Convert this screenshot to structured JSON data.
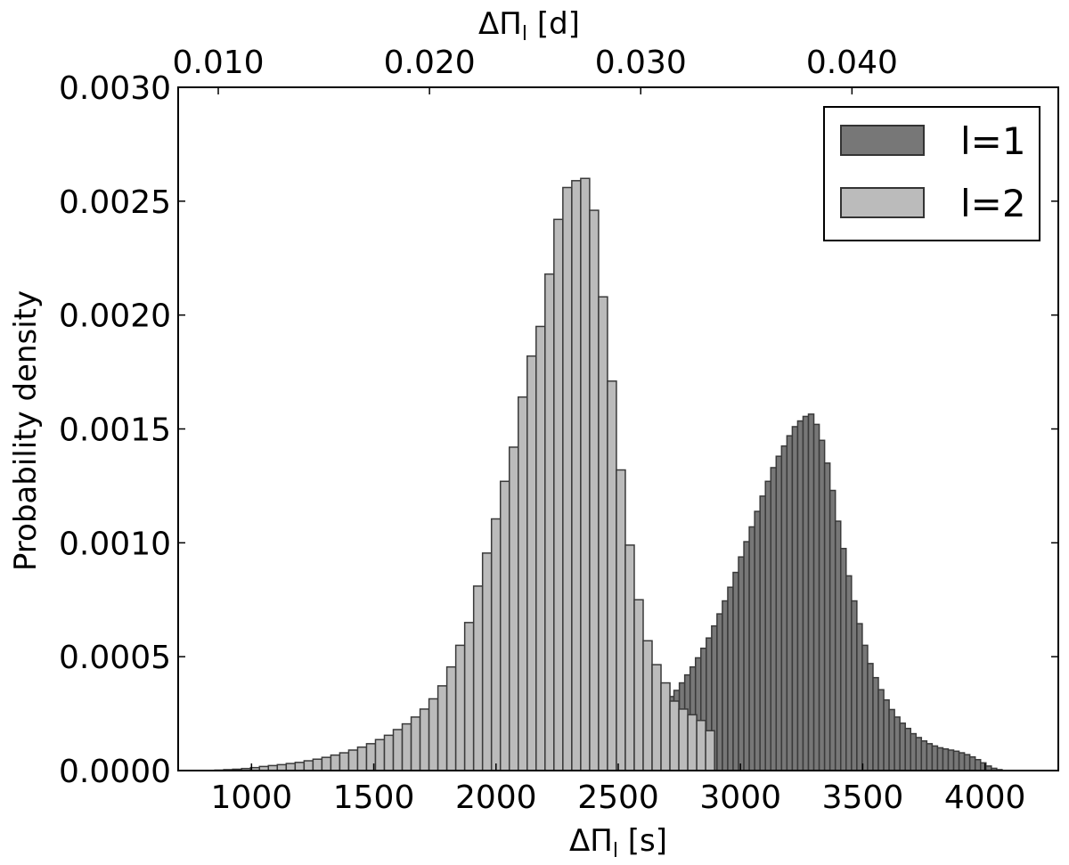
{
  "chart_data": {
    "type": "bar",
    "title": "",
    "xlabel": "ΔΠ",
    "xlabel_sub": "l",
    "xlabel_unit": "[s]",
    "ylabel": "Probability density",
    "top_xlabel": "ΔΠ",
    "top_xlabel_sub": "l",
    "top_xlabel_unit": "[d]",
    "xlim": [
      700,
      4300
    ],
    "ylim": [
      0,
      0.003
    ],
    "xticks": [
      1000,
      1500,
      2000,
      2500,
      3000,
      3500,
      4000
    ],
    "xtick_labels": [
      "1000",
      "1500",
      "2000",
      "2500",
      "3000",
      "3500",
      "4000"
    ],
    "yticks": [
      0,
      0.0005,
      0.001,
      0.0015,
      0.002,
      0.0025,
      0.003
    ],
    "ytick_labels": [
      "0.0000",
      "0.0005",
      "0.0010",
      "0.0015",
      "0.0020",
      "0.0025",
      "0.0030"
    ],
    "top_xticks_days": [
      0.01,
      0.02,
      0.03,
      0.04
    ],
    "top_xtick_labels": [
      "0.010",
      "0.020",
      "0.030",
      "0.040"
    ],
    "grid": false,
    "legend_position": "top-right",
    "series": [
      {
        "name": "l=1",
        "color": "#777777",
        "bin_start": 1870,
        "bin_width": 22,
        "values": [
          4e-06,
          5e-06,
          6e-06,
          7e-06,
          9e-06,
          1e-05,
          1.2e-05,
          1.4e-05,
          1.6e-05,
          1.8e-05,
          2e-05,
          2.3e-05,
          2.6e-05,
          3e-05,
          3.4e-05,
          3.8e-05,
          4.3e-05,
          4.9e-05,
          5.5e-05,
          6.2e-05,
          7e-05,
          7.8e-05,
          8.7e-05,
          9.69e-05,
          0.0001085,
          0.000121,
          0.000135,
          0.000148,
          0.00016,
          0.00017,
          0.000182,
          0.000195,
          0.00021,
          0.000225,
          0.00024,
          0.000258,
          0.000278,
          0.0003,
          0.000325,
          0.000352,
          0.000385,
          0.00042,
          0.000455,
          0.000495,
          0.000537,
          0.000582,
          0.000635,
          0.000688,
          0.000745,
          0.000805,
          0.00087,
          0.000938,
          0.001005,
          0.00107,
          0.001138,
          0.001205,
          0.00127,
          0.00133,
          0.00138,
          0.001425,
          0.00147,
          0.00151,
          0.001535,
          0.001555,
          0.001565,
          0.00152,
          0.00145,
          0.00135,
          0.00123,
          0.001095,
          0.000975,
          0.000855,
          0.000745,
          0.000645,
          0.00055,
          0.00047,
          0.000408,
          0.000355,
          0.00031,
          0.000268,
          0.000235,
          0.000208,
          0.000185,
          0.000162,
          0.000145,
          0.00013,
          0.000118,
          0.000108,
          0.0001,
          9.5e-05,
          9e-05,
          8.5e-05,
          7.8e-05,
          7e-05,
          6e-05,
          4.8e-05,
          3.4e-05,
          2e-05,
          1e-05,
          4e-06
        ]
      },
      {
        "name": "l=2",
        "color": "#bbbbbb",
        "bin_start": 850,
        "bin_width": 36.5,
        "values": [
          2e-06,
          4e-06,
          6e-06,
          9e-06,
          1.3e-05,
          1.8e-05,
          2.2e-05,
          2.6e-05,
          3.1e-05,
          3.6e-05,
          4.3e-05,
          5e-05,
          5.8e-05,
          6.8e-05,
          7.8e-05,
          9e-05,
          0.000103,
          0.000118,
          0.000136,
          0.000155,
          0.00018,
          0.000205,
          0.000235,
          0.00027,
          0.000315,
          0.000372,
          0.000455,
          0.00055,
          0.00065,
          0.00081,
          0.000955,
          0.001105,
          0.00127,
          0.00142,
          0.00164,
          0.00182,
          0.00195,
          0.00218,
          0.00242,
          0.00256,
          0.00259,
          0.0026,
          0.00246,
          0.00208,
          0.00171,
          0.00132,
          0.00099,
          0.00075,
          0.00057,
          0.000465,
          0.000385,
          0.000305,
          0.00027,
          0.000245,
          0.00022,
          0.000175
        ]
      }
    ]
  }
}
